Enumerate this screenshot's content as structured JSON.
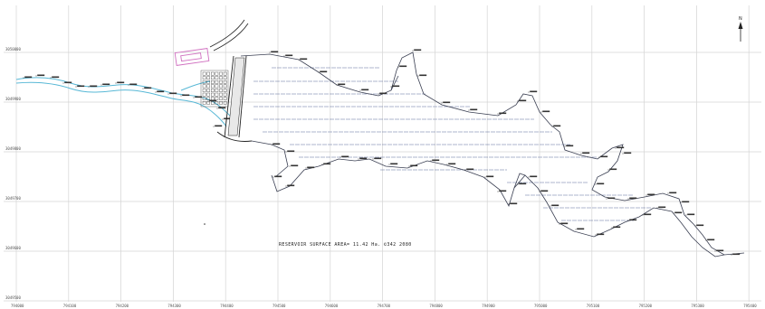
{
  "map": {
    "caption": "RESERVOIR SURFACE AREA= 11.42 Ha. ©342 2080",
    "north_label": "N",
    "colors": {
      "grid": "#d4d4d4",
      "boundary": "#3a3f52",
      "river": "#58b8d6",
      "hatch": "#5a6a9a",
      "structure_pink": "#d070c0"
    },
    "x_ticks": [
      "794000",
      "794100",
      "794200",
      "794300",
      "794400",
      "794500",
      "794600",
      "794700",
      "794800",
      "794900",
      "795000",
      "795100",
      "795200",
      "795300",
      "795400"
    ],
    "y_ticks": [
      "3050000",
      "3049900",
      "3049800",
      "3049700",
      "3049600",
      "3049500"
    ],
    "icons": [
      "north-arrow-icon"
    ]
  }
}
